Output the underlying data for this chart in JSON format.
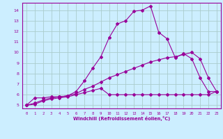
{
  "xlabel": "Windchill (Refroidissement éolien,°C)",
  "bg_color": "#cceeff",
  "line_color": "#990099",
  "grid_color": "#aacccc",
  "xlim": [
    -0.5,
    23.5
  ],
  "ylim": [
    4.7,
    14.7
  ],
  "yticks": [
    5,
    6,
    7,
    8,
    9,
    10,
    11,
    12,
    13,
    14
  ],
  "xticks": [
    0,
    1,
    2,
    3,
    4,
    5,
    6,
    7,
    8,
    9,
    10,
    11,
    12,
    13,
    14,
    15,
    16,
    17,
    18,
    19,
    20,
    21,
    22,
    23
  ],
  "series1_x": [
    0,
    1,
    2,
    3,
    4,
    5,
    6,
    7,
    8,
    9,
    10,
    11,
    12,
    13,
    14,
    15,
    16,
    17,
    18,
    19,
    20,
    21,
    22,
    23
  ],
  "series1_y": [
    5.0,
    5.7,
    5.7,
    5.8,
    5.8,
    5.9,
    6.3,
    7.3,
    8.5,
    9.6,
    11.4,
    12.7,
    13.0,
    13.9,
    14.0,
    14.4,
    11.9,
    11.3,
    9.5,
    9.9,
    9.4,
    7.6,
    6.3,
    6.3
  ],
  "series2_x": [
    0,
    1,
    2,
    3,
    4,
    5,
    6,
    7,
    8,
    9,
    10,
    11,
    12,
    13,
    14,
    15,
    16,
    17,
    18,
    19,
    20,
    21,
    22,
    23
  ],
  "series2_y": [
    5.0,
    5.2,
    5.5,
    5.7,
    5.8,
    5.9,
    6.1,
    6.5,
    6.8,
    7.2,
    7.6,
    7.9,
    8.2,
    8.5,
    8.8,
    9.1,
    9.3,
    9.5,
    9.6,
    9.8,
    10.0,
    9.4,
    7.6,
    6.3
  ],
  "series3_x": [
    0,
    1,
    2,
    3,
    4,
    5,
    6,
    7,
    8,
    9,
    10,
    11,
    12,
    13,
    14,
    15,
    16,
    17,
    18,
    19,
    20,
    21,
    22,
    23
  ],
  "series3_y": [
    5.0,
    5.1,
    5.4,
    5.6,
    5.7,
    5.8,
    6.0,
    6.2,
    6.4,
    6.6,
    6.0,
    6.0,
    6.0,
    6.0,
    6.0,
    6.0,
    6.0,
    6.0,
    6.0,
    6.0,
    6.0,
    6.0,
    6.0,
    6.3
  ]
}
